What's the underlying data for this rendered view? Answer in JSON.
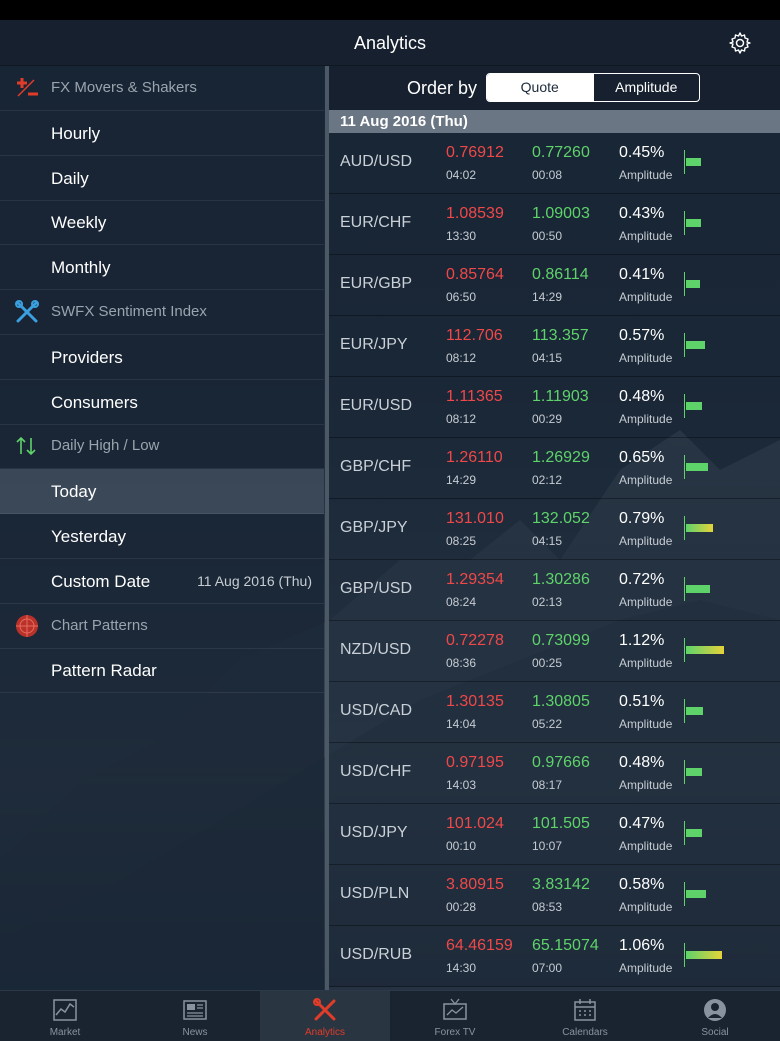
{
  "nav": {
    "title": "Analytics"
  },
  "sidebar": {
    "items": [
      {
        "type": "section",
        "label": "FX Movers & Shakers",
        "icon": "plus-minus-icon"
      },
      {
        "type": "item",
        "label": "Hourly"
      },
      {
        "type": "item",
        "label": "Daily"
      },
      {
        "type": "item",
        "label": "Weekly"
      },
      {
        "type": "item",
        "label": "Monthly"
      },
      {
        "type": "section",
        "label": "SWFX Sentiment Index",
        "icon": "tools-icon"
      },
      {
        "type": "item",
        "label": "Providers"
      },
      {
        "type": "item",
        "label": "Consumers"
      },
      {
        "type": "section",
        "label": "Daily High / Low",
        "icon": "up-down-arrows-icon"
      },
      {
        "type": "item",
        "label": "Today",
        "selected": true
      },
      {
        "type": "item",
        "label": "Yesterday"
      },
      {
        "type": "item",
        "label": "Custom Date",
        "value": "11 Aug 2016 (Thu)"
      },
      {
        "type": "section",
        "label": "Chart Patterns",
        "icon": "radar-icon"
      },
      {
        "type": "item",
        "label": "Pattern Radar"
      }
    ]
  },
  "order": {
    "label": "Order by",
    "options": [
      "Quote",
      "Amplitude"
    ],
    "selected": "Quote"
  },
  "date_header": "11 Aug 2016 (Thu)",
  "quotes": [
    {
      "pair": "AUD/USD",
      "low": "0.76912",
      "low_time": "04:02",
      "high": "0.77260",
      "high_time": "00:08",
      "amp": "0.45%",
      "amp_label": "Amplitude",
      "amp_value": 0.45
    },
    {
      "pair": "EUR/CHF",
      "low": "1.08539",
      "low_time": "13:30",
      "high": "1.09003",
      "high_time": "00:50",
      "amp": "0.43%",
      "amp_label": "Amplitude",
      "amp_value": 0.43
    },
    {
      "pair": "EUR/GBP",
      "low": "0.85764",
      "low_time": "06:50",
      "high": "0.86114",
      "high_time": "14:29",
      "amp": "0.41%",
      "amp_label": "Amplitude",
      "amp_value": 0.41
    },
    {
      "pair": "EUR/JPY",
      "low": "112.706",
      "low_time": "08:12",
      "high": "113.357",
      "high_time": "04:15",
      "amp": "0.57%",
      "amp_label": "Amplitude",
      "amp_value": 0.57
    },
    {
      "pair": "EUR/USD",
      "low": "1.11365",
      "low_time": "08:12",
      "high": "1.11903",
      "high_time": "00:29",
      "amp": "0.48%",
      "amp_label": "Amplitude",
      "amp_value": 0.48
    },
    {
      "pair": "GBP/CHF",
      "low": "1.26110",
      "low_time": "14:29",
      "high": "1.26929",
      "high_time": "02:12",
      "amp": "0.65%",
      "amp_label": "Amplitude",
      "amp_value": 0.65
    },
    {
      "pair": "GBP/JPY",
      "low": "131.010",
      "low_time": "08:25",
      "high": "132.052",
      "high_time": "04:15",
      "amp": "0.79%",
      "amp_label": "Amplitude",
      "amp_value": 0.79
    },
    {
      "pair": "GBP/USD",
      "low": "1.29354",
      "low_time": "08:24",
      "high": "1.30286",
      "high_time": "02:13",
      "amp": "0.72%",
      "amp_label": "Amplitude",
      "amp_value": 0.72
    },
    {
      "pair": "NZD/USD",
      "low": "0.72278",
      "low_time": "08:36",
      "high": "0.73099",
      "high_time": "00:25",
      "amp": "1.12%",
      "amp_label": "Amplitude",
      "amp_value": 1.12
    },
    {
      "pair": "USD/CAD",
      "low": "1.30135",
      "low_time": "14:04",
      "high": "1.30805",
      "high_time": "05:22",
      "amp": "0.51%",
      "amp_label": "Amplitude",
      "amp_value": 0.51
    },
    {
      "pair": "USD/CHF",
      "low": "0.97195",
      "low_time": "14:03",
      "high": "0.97666",
      "high_time": "08:17",
      "amp": "0.48%",
      "amp_label": "Amplitude",
      "amp_value": 0.48
    },
    {
      "pair": "USD/JPY",
      "low": "101.024",
      "low_time": "00:10",
      "high": "101.505",
      "high_time": "10:07",
      "amp": "0.47%",
      "amp_label": "Amplitude",
      "amp_value": 0.47
    },
    {
      "pair": "USD/PLN",
      "low": "3.80915",
      "low_time": "00:28",
      "high": "3.83142",
      "high_time": "08:53",
      "amp": "0.58%",
      "amp_label": "Amplitude",
      "amp_value": 0.58
    },
    {
      "pair": "USD/RUB",
      "low": "64.46159",
      "low_time": "14:30",
      "high": "65.15074",
      "high_time": "07:00",
      "amp": "1.06%",
      "amp_label": "Amplitude",
      "amp_value": 1.06
    }
  ],
  "tabs": [
    {
      "label": "Market",
      "icon": "market-chart-icon"
    },
    {
      "label": "News",
      "icon": "newspaper-icon"
    },
    {
      "label": "Analytics",
      "icon": "analytics-tools-icon",
      "active": true
    },
    {
      "label": "Forex TV",
      "icon": "tv-icon"
    },
    {
      "label": "Calendars",
      "icon": "calendar-icon"
    },
    {
      "label": "Social",
      "icon": "person-icon"
    }
  ],
  "colors": {
    "low": "#f04848",
    "high": "#5ed36a",
    "active_tab": "#e03c2a",
    "accent_blue": "#3aa0e0"
  }
}
